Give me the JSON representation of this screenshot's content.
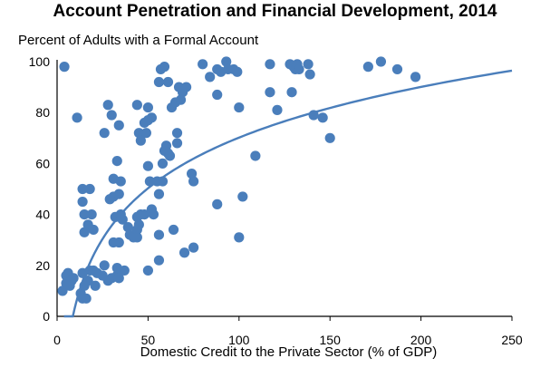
{
  "chart_data": {
    "type": "scatter",
    "title": "Account Penetration and Financial Development, 2014",
    "ylabel": "Percent of Adults with a Formal Account",
    "xlabel": "Domestic Credit to the Private Sector (% of GDP)",
    "xlim": [
      0,
      250
    ],
    "ylim": [
      0,
      100
    ],
    "xticks": [
      0,
      50,
      100,
      150,
      200,
      250
    ],
    "yticks": [
      0,
      20,
      40,
      60,
      80,
      100
    ],
    "point_color": "#4a7ebb",
    "trend_color": "#4a7ebb",
    "trendline": {
      "type": "log",
      "a": -62,
      "b": 28.7,
      "x_start": 3.8,
      "x_end": 250
    },
    "points": [
      [
        4,
        98
      ],
      [
        11,
        78
      ],
      [
        3,
        10
      ],
      [
        5,
        16
      ],
      [
        6,
        17
      ],
      [
        7,
        12
      ],
      [
        8,
        14
      ],
      [
        9,
        15
      ],
      [
        5,
        13
      ],
      [
        14,
        50
      ],
      [
        18,
        50
      ],
      [
        14,
        45
      ],
      [
        15,
        40
      ],
      [
        17,
        36
      ],
      [
        19,
        40
      ],
      [
        20,
        34
      ],
      [
        15,
        33
      ],
      [
        13,
        9
      ],
      [
        14,
        7
      ],
      [
        16,
        7
      ],
      [
        15,
        12
      ],
      [
        17,
        14
      ],
      [
        14,
        17
      ],
      [
        18,
        18
      ],
      [
        20,
        18
      ],
      [
        22,
        17
      ],
      [
        21,
        12
      ],
      [
        25,
        16
      ],
      [
        26,
        20
      ],
      [
        28,
        14
      ],
      [
        30,
        15
      ],
      [
        33,
        16
      ],
      [
        33,
        19
      ],
      [
        34,
        18
      ],
      [
        37,
        18
      ],
      [
        33,
        16
      ],
      [
        26,
        72
      ],
      [
        28,
        83
      ],
      [
        30,
        79
      ],
      [
        34,
        75
      ],
      [
        33,
        61
      ],
      [
        31,
        47
      ],
      [
        29,
        46
      ],
      [
        31,
        54
      ],
      [
        32,
        39
      ],
      [
        35,
        40
      ],
      [
        34,
        48
      ],
      [
        35,
        53
      ],
      [
        36,
        38
      ],
      [
        39,
        35
      ],
      [
        40,
        32
      ],
      [
        42,
        31
      ],
      [
        44,
        31
      ],
      [
        44,
        39
      ],
      [
        45,
        36
      ],
      [
        46,
        40
      ],
      [
        31,
        29
      ],
      [
        34,
        29
      ],
      [
        34,
        15
      ],
      [
        44,
        34
      ],
      [
        44,
        83
      ],
      [
        45,
        72
      ],
      [
        46,
        69
      ],
      [
        48,
        76
      ],
      [
        49,
        72
      ],
      [
        50,
        77
      ],
      [
        50,
        82
      ],
      [
        52,
        78
      ],
      [
        50,
        59
      ],
      [
        51,
        53
      ],
      [
        52,
        42
      ],
      [
        53,
        40
      ],
      [
        55,
        53
      ],
      [
        56,
        48
      ],
      [
        58,
        53
      ],
      [
        56,
        92
      ],
      [
        57,
        97
      ],
      [
        59,
        98
      ],
      [
        61,
        92
      ],
      [
        60,
        67
      ],
      [
        59,
        65
      ],
      [
        61,
        64
      ],
      [
        62,
        63
      ],
      [
        63,
        82
      ],
      [
        65,
        84
      ],
      [
        67,
        90
      ],
      [
        68,
        85
      ],
      [
        69,
        88
      ],
      [
        71,
        90
      ],
      [
        66,
        72
      ],
      [
        66,
        68
      ],
      [
        64,
        34
      ],
      [
        56,
        32
      ],
      [
        50,
        18
      ],
      [
        56,
        22
      ],
      [
        70,
        25
      ],
      [
        75,
        27
      ],
      [
        74,
        56
      ],
      [
        75,
        53
      ],
      [
        80,
        99
      ],
      [
        84,
        94
      ],
      [
        88,
        97
      ],
      [
        90,
        96
      ],
      [
        93,
        100
      ],
      [
        94,
        97
      ],
      [
        97,
        97
      ],
      [
        88,
        87
      ],
      [
        100,
        82
      ],
      [
        88,
        44
      ],
      [
        102,
        47
      ],
      [
        100,
        31
      ],
      [
        109,
        63
      ],
      [
        117,
        99
      ],
      [
        117,
        88
      ],
      [
        121,
        81
      ],
      [
        128,
        99
      ],
      [
        129,
        88
      ],
      [
        130,
        98
      ],
      [
        131,
        97
      ],
      [
        132,
        99
      ],
      [
        133,
        97
      ],
      [
        138,
        99
      ],
      [
        139,
        95
      ],
      [
        141,
        79
      ],
      [
        146,
        78
      ],
      [
        150,
        70
      ],
      [
        171,
        98
      ],
      [
        178,
        100
      ],
      [
        187,
        97
      ],
      [
        197,
        94
      ],
      [
        48,
        40
      ],
      [
        58,
        60
      ],
      [
        99,
        96
      ]
    ]
  }
}
